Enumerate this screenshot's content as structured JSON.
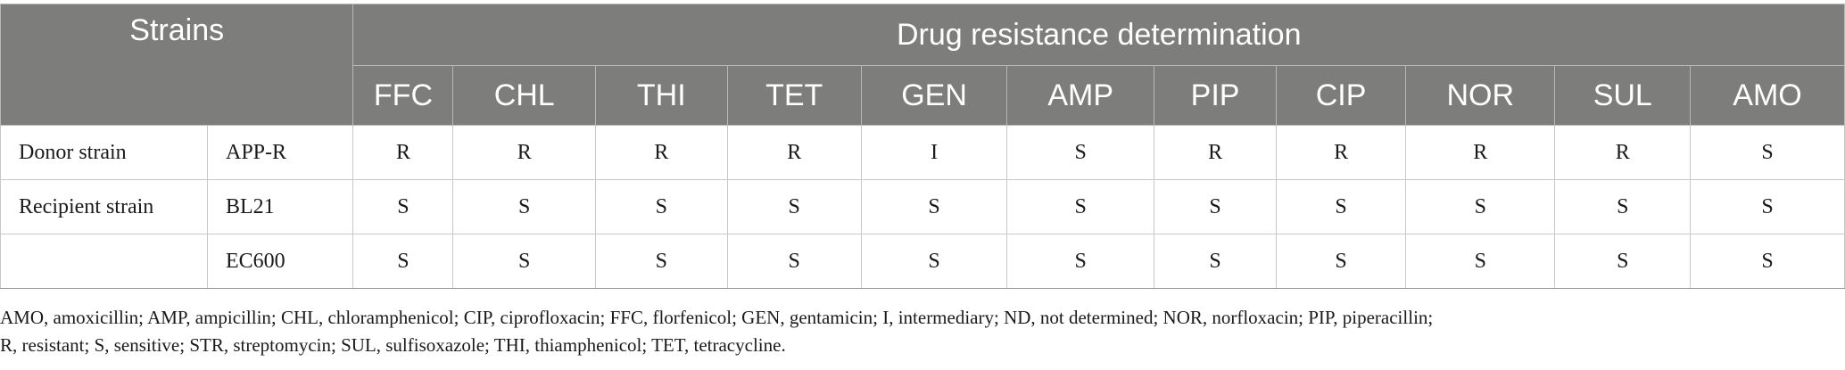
{
  "header": {
    "strains_label": "Strains",
    "drug_label": "Drug resistance determination",
    "drugs": [
      "FFC",
      "CHL",
      "THI",
      "TET",
      "GEN",
      "AMP",
      "PIP",
      "CIP",
      "NOR",
      "SUL",
      "AMO"
    ]
  },
  "rows": [
    {
      "group": "Donor strain",
      "strain": "APP-R",
      "values": [
        "R",
        "R",
        "R",
        "R",
        "I",
        "S",
        "R",
        "R",
        "R",
        "R",
        "S"
      ]
    },
    {
      "group": "Recipient strain",
      "strain": "BL21",
      "values": [
        "S",
        "S",
        "S",
        "S",
        "S",
        "S",
        "S",
        "S",
        "S",
        "S",
        "S"
      ]
    },
    {
      "group": "",
      "strain": "EC600",
      "values": [
        "S",
        "S",
        "S",
        "S",
        "S",
        "S",
        "S",
        "S",
        "S",
        "S",
        "S"
      ]
    }
  ],
  "footnote": {
    "line1": "AMO, amoxicillin; AMP, ampicillin; CHL, chloramphenicol; CIP, ciprofloxacin; FFC, florfenicol; GEN, gentamicin; I, intermediary; ND, not determined; NOR, norfloxacin; PIP, piperacillin;",
    "line2": "R, resistant; S, sensitive; STR, streptomycin; SUL, sulfisoxazole; THI, thiamphenicol; TET, tetracycline."
  }
}
